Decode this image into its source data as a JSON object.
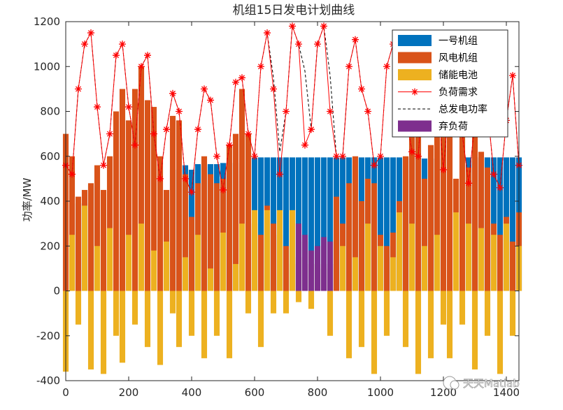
{
  "chart_data": {
    "type": "bar",
    "title": "机组15日发电计划曲线",
    "xlabel": "",
    "ylabel": "功率/MW",
    "xlim": [
      0,
      1440
    ],
    "ylim": [
      -400,
      1200
    ],
    "x_ticks": [
      0,
      200,
      400,
      600,
      800,
      1000,
      1200,
      1400
    ],
    "y_ticks": [
      -400,
      -200,
      0,
      200,
      400,
      600,
      800,
      1000,
      1200
    ],
    "grid": false,
    "legend_position": "top-right",
    "sample_points": [
      0,
      20,
      40,
      60,
      80,
      100,
      120,
      140,
      160,
      180,
      200,
      220,
      240,
      260,
      280,
      300,
      320,
      340,
      360,
      380,
      400,
      420,
      440,
      460,
      480,
      500,
      520,
      540,
      560,
      580,
      600,
      620,
      640,
      660,
      680,
      700,
      720,
      740,
      760,
      780,
      800,
      820,
      840,
      860,
      880,
      900,
      920,
      940,
      960,
      980,
      1000,
      1020,
      1040,
      1060,
      1080,
      1100,
      1120,
      1140,
      1160,
      1180,
      1200,
      1220,
      1240,
      1260,
      1280,
      1300,
      1320,
      1340,
      1360,
      1380,
      1400,
      1420,
      1440
    ],
    "series": [
      {
        "name": "一号机组",
        "color": "#0072BD",
        "type": "bar",
        "values": [
          0,
          0,
          390,
          390,
          470,
          0,
          0,
          0,
          0,
          0,
          0,
          0,
          0,
          0,
          0,
          0,
          0,
          540,
          540,
          560,
          540,
          565,
          560,
          565,
          565,
          570,
          570,
          570,
          0,
          0,
          595,
          595,
          595,
          595,
          595,
          595,
          595,
          595,
          595,
          595,
          595,
          595,
          595,
          595,
          595,
          595,
          595,
          595,
          595,
          595,
          595,
          595,
          595,
          595,
          595,
          595,
          595,
          590,
          590,
          590,
          0,
          0,
          0,
          0,
          595,
          595,
          595,
          595,
          595,
          595,
          595,
          595,
          595
        ]
      },
      {
        "name": "风电机组",
        "color": "#D95319",
        "type": "bar",
        "values": [
          700,
          600,
          420,
          450,
          480,
          560,
          450,
          600,
          800,
          900,
          760,
          900,
          1000,
          850,
          820,
          600,
          450,
          780,
          760,
          520,
          330,
          480,
          600,
          520,
          480,
          500,
          650,
          700,
          900,
          700,
          300,
          250,
          380,
          300,
          250,
          200,
          120,
          150,
          220,
          120,
          120,
          100,
          120,
          420,
          300,
          480,
          600,
          400,
          500,
          480,
          250,
          200,
          260,
          400,
          600,
          800,
          700,
          500,
          650,
          1000,
          950,
          700,
          500,
          700,
          550,
          800,
          620,
          550,
          300,
          250,
          330,
          220,
          350
        ]
      },
      {
        "name": "储能电池",
        "color": "#EDB120",
        "type": "bar",
        "values": [
          -360,
          250,
          -150,
          380,
          -350,
          200,
          -370,
          280,
          -200,
          -320,
          250,
          -150,
          300,
          -250,
          180,
          -330,
          220,
          -100,
          -250,
          150,
          -200,
          250,
          -300,
          100,
          -200,
          260,
          -300,
          120,
          300,
          -100,
          360,
          -250,
          360,
          -100,
          360,
          -100,
          360,
          -50,
          0,
          -80,
          0,
          0,
          -200,
          0,
          200,
          -300,
          150,
          -250,
          300,
          -370,
          200,
          -200,
          150,
          350,
          -250,
          300,
          -370,
          200,
          -300,
          250,
          -150,
          -300,
          350,
          -150,
          300,
          -350,
          280,
          -200,
          250,
          -370,
          300,
          -200,
          200
        ]
      },
      {
        "name": "负荷需求",
        "color": "#FF0000",
        "type": "line",
        "marker": "*",
        "values": [
          560,
          520,
          900,
          1100,
          1150,
          820,
          560,
          700,
          1050,
          1100,
          820,
          650,
          1000,
          1050,
          700,
          500,
          720,
          880,
          800,
          500,
          440,
          720,
          900,
          850,
          600,
          450,
          650,
          930,
          950,
          700,
          600,
          1000,
          1150,
          900,
          520,
          800,
          1180,
          1100,
          650,
          720,
          1100,
          1180,
          800,
          600,
          600,
          1000,
          1120,
          900,
          800,
          560,
          600,
          1000,
          1100,
          1050,
          800,
          620,
          600,
          1000,
          1080,
          900,
          540,
          880,
          1000,
          700,
          480,
          750,
          960,
          820,
          520,
          460,
          760,
          960,
          560
        ]
      },
      {
        "name": "总发电功率",
        "color": "#000000",
        "type": "line",
        "dash": "dashed",
        "values": [
          560,
          520,
          900,
          1100,
          1150,
          820,
          560,
          700,
          1050,
          1100,
          820,
          650,
          1000,
          1050,
          700,
          500,
          720,
          880,
          800,
          500,
          440,
          720,
          900,
          850,
          600,
          450,
          650,
          930,
          950,
          700,
          600,
          1000,
          1150,
          950,
          620,
          800,
          1180,
          1100,
          980,
          720,
          1100,
          1180,
          960,
          600,
          600,
          1000,
          1120,
          900,
          800,
          560,
          600,
          1000,
          1100,
          1050,
          800,
          620,
          600,
          1000,
          1080,
          900,
          540,
          880,
          1000,
          700,
          480,
          750,
          960,
          820,
          520,
          460,
          760,
          960,
          560
        ]
      },
      {
        "name": "弃负荷",
        "color": "#7E2F8E",
        "type": "bar",
        "values": [
          0,
          0,
          0,
          0,
          0,
          0,
          0,
          0,
          0,
          0,
          0,
          0,
          0,
          0,
          0,
          0,
          0,
          0,
          0,
          0,
          0,
          0,
          0,
          0,
          0,
          0,
          0,
          0,
          0,
          0,
          0,
          0,
          0,
          0,
          0,
          0,
          0,
          300,
          250,
          180,
          200,
          240,
          220,
          0,
          0,
          0,
          0,
          0,
          0,
          0,
          0,
          0,
          0,
          0,
          0,
          0,
          0,
          0,
          0,
          0,
          0,
          0,
          0,
          0,
          0,
          0,
          0,
          0,
          0,
          0,
          0,
          0,
          0
        ]
      }
    ],
    "watermark": "天天Matlab"
  }
}
